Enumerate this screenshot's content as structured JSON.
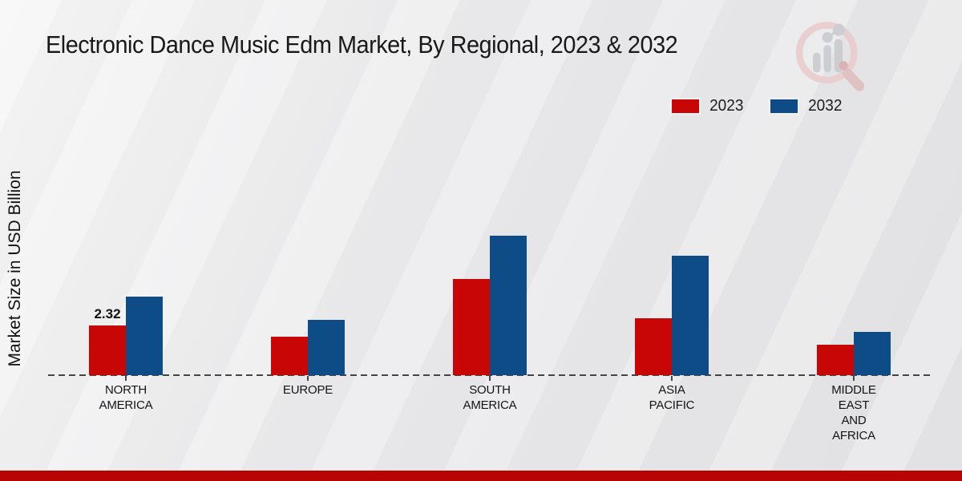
{
  "title": "Electronic Dance Music Edm Market, By Regional, 2023 & 2032",
  "colors": {
    "bar_2023": "#c90606",
    "bar_2032": "#0d4c87",
    "bottom_bar": "#b90404",
    "background": "#e9e9eb",
    "baseline": "#454545"
  },
  "chart_data": {
    "type": "bar",
    "title": "Electronic Dance Music Edm Market, By Regional, 2023 & 2032",
    "ylabel": "Market Size in USD Billion",
    "xlabel": "",
    "categories": [
      "North America",
      "Europe",
      "South America",
      "Asia Pacific",
      "Middle East and Africa"
    ],
    "tick_labels": [
      "NORTH\nAMERICA",
      "EUROPE",
      "SOUTH\nAMERICA",
      "ASIA\nPACIFIC",
      "MIDDLE\nEAST\nAND\nAFRICA"
    ],
    "series": [
      {
        "name": "2023",
        "color": "#c90606",
        "values": [
          2.32,
          1.8,
          4.5,
          2.65,
          1.42
        ]
      },
      {
        "name": "2032",
        "color": "#0d4c87",
        "values": [
          3.67,
          2.58,
          6.5,
          5.58,
          2.02
        ]
      }
    ],
    "data_labels": [
      [
        "2.32",
        "",
        "",
        "",
        ""
      ],
      [
        "",
        "",
        "",
        "",
        ""
      ]
    ],
    "ylim": [
      0,
      12
    ],
    "grid": false,
    "baseline_style": "dashed",
    "legend_position": "top-right"
  },
  "watermark": {
    "name": "market-research-logo"
  }
}
